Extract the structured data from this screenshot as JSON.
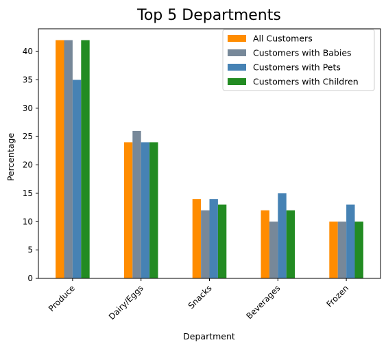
{
  "chart_data": {
    "type": "bar",
    "title": "Top 5 Departments",
    "xlabel": "Department",
    "ylabel": "Percentage",
    "categories": [
      "Produce",
      "Dairy/Eggs",
      "Snacks",
      "Beverages",
      "Frozen"
    ],
    "series": [
      {
        "name": "All Customers",
        "color": "#ff8c00",
        "values": [
          42,
          24,
          14,
          12,
          10
        ]
      },
      {
        "name": "Customers with Babies",
        "color": "#778899",
        "values": [
          42,
          26,
          12,
          10,
          10
        ]
      },
      {
        "name": "Customers with Pets",
        "color": "#4682b4",
        "values": [
          35,
          24,
          14,
          15,
          13
        ]
      },
      {
        "name": "Customers with Children",
        "color": "#228b22",
        "values": [
          42,
          24,
          13,
          12,
          10
        ]
      }
    ],
    "ylim": [
      0,
      44
    ],
    "yticks": [
      0,
      5,
      10,
      15,
      20,
      25,
      30,
      35,
      40
    ],
    "grid": false,
    "legend_position": "top-right"
  }
}
